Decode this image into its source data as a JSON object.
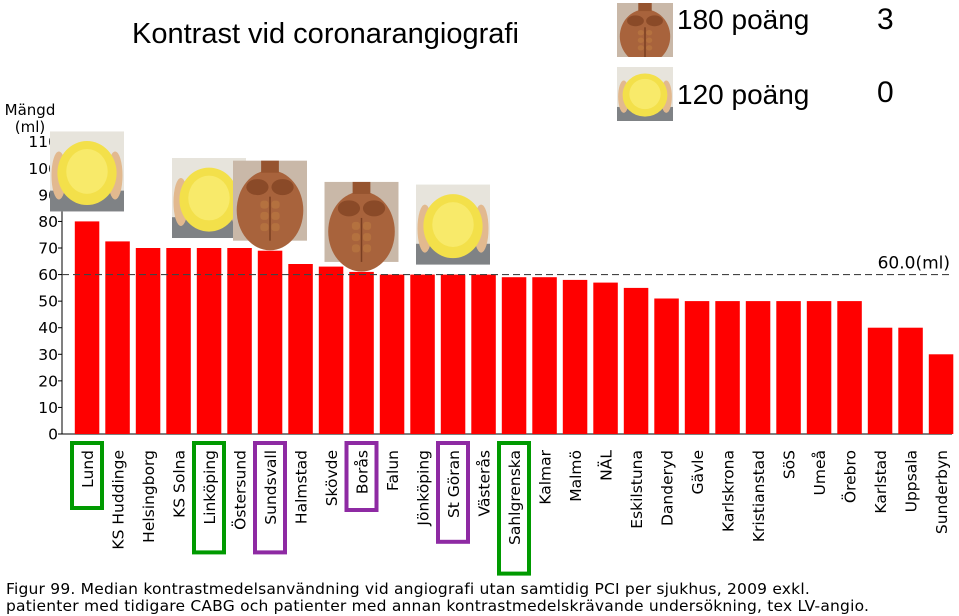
{
  "slide_title": "Kontrast vid coronarangiografi",
  "legend": {
    "muscular": {
      "label": "180 poäng",
      "count": "3"
    },
    "overweight": {
      "label": "120 poäng",
      "count": "0"
    }
  },
  "caption": {
    "line1": "Figur 99. Median kontrastmedelsanvändning vid angiografi utan samtidig PCI per sjukhus, 2009 exkl.",
    "line2": "patienter med tidigare CABG och patienter med annan kontrastmedelskrävande undersökning, tex LV-angio."
  },
  "colors": {
    "bar": "#ff0000",
    "green_box": "#009a00",
    "purple_box": "#8e2aa3",
    "reference_line": "#444444"
  },
  "chart_data": {
    "type": "bar",
    "title": "",
    "xlabel": "",
    "ylabel": "Mängd (ml)",
    "ylabel_lines": [
      "Mängd",
      "(ml)"
    ],
    "ylim": [
      0,
      110
    ],
    "yticks": [
      0,
      10,
      20,
      30,
      40,
      50,
      60,
      70,
      80,
      90,
      100,
      110
    ],
    "grid": false,
    "legend": "none",
    "categories": [
      "Lund",
      "KS Huddinge",
      "Helsingborg",
      "KS Solna",
      "Linköping",
      "Östersund",
      "Sundsvall",
      "Halmstad",
      "Skövde",
      "Borås",
      "Falun",
      "Jönköping",
      "St Göran",
      "Västerås",
      "Sahlgrenska",
      "Kalmar",
      "Malmö",
      "NÄL",
      "Eskilstuna",
      "Danderyd",
      "Gävle",
      "Karlskrona",
      "Kristianstad",
      "SöS",
      "Umeå",
      "Örebro",
      "Karlstad",
      "Uppsala",
      "Sunderbyn"
    ],
    "values": [
      80,
      72.5,
      70,
      70,
      70,
      70,
      69,
      64,
      63,
      61,
      60,
      60,
      60,
      60,
      59,
      59,
      58,
      57,
      55,
      51,
      50,
      50,
      50,
      50,
      50,
      50,
      40,
      40,
      30
    ],
    "reference_line": {
      "value": 60,
      "label": "60.0(ml)"
    },
    "highlight": {
      "green": [
        "Lund",
        "Linköping",
        "Sahlgrenska"
      ],
      "purple": [
        "Sundsvall",
        "Borås",
        "St Göran"
      ]
    },
    "photo_markers": [
      {
        "category": "Lund",
        "type": "overweight"
      },
      {
        "category": "Linköping",
        "type": "overweight"
      },
      {
        "category": "Sundsvall",
        "type": "muscular"
      },
      {
        "category": "Borås",
        "type": "muscular"
      },
      {
        "category": "St Göran",
        "type": "overweight"
      }
    ]
  }
}
